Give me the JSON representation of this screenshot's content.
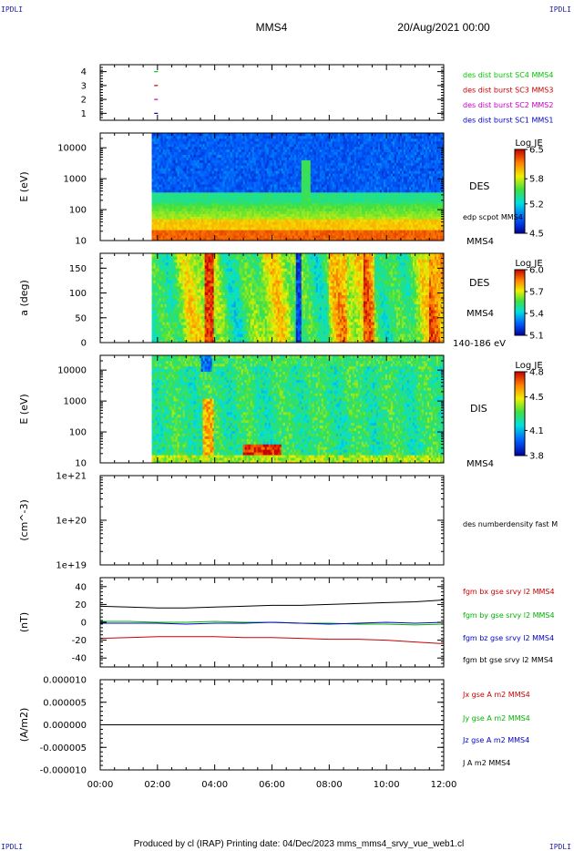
{
  "page": {
    "corner_labels": [
      "IPDLI",
      "IPDLI",
      "IPDLI",
      "IPDLI"
    ],
    "title": "MMS4",
    "date": "20/Aug/2021 00:00",
    "footer": "Produced by cl (IRAP)   Printing date: 04/Dec/2023   mms_mms4_srvy_vue_web1.cl"
  },
  "time_axis": {
    "ticks": [
      "00:00",
      "02:00",
      "04:00",
      "06:00",
      "08:00",
      "10:00",
      "12:00"
    ],
    "range_hours": [
      0,
      12
    ]
  },
  "chart_data": [
    {
      "type": "scatter",
      "id": "burst",
      "ylabel": "",
      "ylim": [
        0.5,
        4.5
      ],
      "yticks": [
        "1",
        "2",
        "3",
        "4"
      ],
      "series": [
        {
          "name": "des dist burst SC1 MMS1",
          "color": "#0000c8",
          "y": 1,
          "x": [
            1.95
          ]
        },
        {
          "name": "des dist burst SC2 MMS2",
          "color": "#c800c8",
          "y": 2,
          "x": [
            1.95
          ]
        },
        {
          "name": "des dist burst SC3 MMS3",
          "color": "#c80000",
          "y": 3,
          "x": [
            1.95
          ]
        },
        {
          "name": "des dist burst SC4 MMS4",
          "color": "#00c800",
          "y": 4,
          "x": [
            1.95
          ]
        }
      ]
    },
    {
      "type": "heatmap",
      "id": "des_energy",
      "ylabel": "E (eV)",
      "scale": "log",
      "ylim": [
        10,
        30000
      ],
      "yticks": [
        "10",
        "100",
        "1000",
        "10000"
      ],
      "data_start_hour": 1.8,
      "right_labels": [
        "DES",
        "edp scpot MMS4",
        "MMS4"
      ],
      "colorbar": {
        "title": "Log JE",
        "ticks": [
          "6.5",
          "5.8",
          "5.2",
          "4.5"
        ],
        "range": [
          4.5,
          6.5
        ]
      }
    },
    {
      "type": "heatmap",
      "id": "des_pitch",
      "ylabel": "a (deg)",
      "ylim": [
        0,
        180
      ],
      "yticks": [
        "0",
        "50",
        "100",
        "150"
      ],
      "data_start_hour": 1.8,
      "right_labels": [
        "DES",
        "MMS4",
        "140-186 eV"
      ],
      "colorbar": {
        "title": "Log JE",
        "ticks": [
          "6.0",
          "5.7",
          "5.4",
          "5.1"
        ],
        "range": [
          5.1,
          6.0
        ]
      }
    },
    {
      "type": "heatmap",
      "id": "dis_energy",
      "ylabel": "E (eV)",
      "scale": "log",
      "ylim": [
        10,
        30000
      ],
      "yticks": [
        "10",
        "100",
        "1000",
        "10000"
      ],
      "data_start_hour": 1.8,
      "right_labels": [
        "DIS",
        "MMS4"
      ],
      "colorbar": {
        "title": "Log JE",
        "ticks": [
          "4.8",
          "4.5",
          "4.1",
          "3.8"
        ],
        "range": [
          3.8,
          4.8
        ]
      }
    },
    {
      "type": "line",
      "id": "density",
      "ylabel": "(cm^-3)",
      "scale": "log",
      "ylim": [
        1e+19,
        1e+21
      ],
      "yticks": [
        "1e+19",
        "1e+20",
        "1e+21"
      ],
      "series": [
        {
          "name": "des numberdensity fast M",
          "color": "#000000",
          "x": [],
          "y": []
        }
      ]
    },
    {
      "type": "line",
      "id": "fgm",
      "ylabel": "(nT)",
      "ylim": [
        -50,
        50
      ],
      "yticks": [
        "-40",
        "-20",
        "0",
        "20",
        "40"
      ],
      "series": [
        {
          "name": "fgm bx gse srvy l2 MMS4",
          "color": "#c80000",
          "x": [
            0,
            1,
            2,
            3,
            4,
            5,
            6,
            7,
            8,
            9,
            10,
            11,
            12
          ],
          "y": [
            -18,
            -17,
            -16,
            -16,
            -16,
            -17,
            -17,
            -18,
            -19,
            -19,
            -20,
            -22,
            -24
          ]
        },
        {
          "name": "fgm by gse srvy l2 MMS4",
          "color": "#00b400",
          "x": [
            0,
            1,
            2,
            3,
            4,
            5,
            6,
            7,
            8,
            9,
            10,
            11,
            12
          ],
          "y": [
            1,
            1,
            0,
            0,
            1,
            0,
            0,
            -1,
            -1,
            -2,
            -2,
            -3,
            -2
          ]
        },
        {
          "name": "fgm bz gse srvy l2 MMS4",
          "color": "#0000c8",
          "x": [
            0,
            1,
            2,
            3,
            4,
            5,
            6,
            7,
            8,
            9,
            10,
            11,
            12
          ],
          "y": [
            -1,
            -1,
            -1,
            -2,
            -1,
            -1,
            0,
            -1,
            -2,
            -1,
            0,
            -1,
            0
          ]
        },
        {
          "name": "fgm bt gse srvy l2 MMS4",
          "color": "#000000",
          "x": [
            0,
            1,
            2,
            3,
            4,
            5,
            6,
            7,
            8,
            9,
            10,
            11,
            12
          ],
          "y": [
            18,
            17,
            16,
            16,
            17,
            18,
            19,
            19,
            20,
            21,
            22,
            23,
            25
          ]
        }
      ]
    },
    {
      "type": "line",
      "id": "current",
      "ylabel": "(A/m2)",
      "ylim": [
        -1e-05,
        1e-05
      ],
      "yticks": [
        "-0.000010",
        "-0.000005",
        "0.000000",
        "0.000005",
        "0.000010"
      ],
      "series": [
        {
          "name": "Jx gse A m2 MMS4",
          "color": "#c80000",
          "x": [
            0,
            12
          ],
          "y": [
            0,
            0
          ]
        },
        {
          "name": "Jy gse A m2 MMS4",
          "color": "#00b400",
          "x": [
            0,
            12
          ],
          "y": [
            0,
            0
          ]
        },
        {
          "name": "Jz gse A m2 MMS4",
          "color": "#0000c8",
          "x": [
            0,
            12
          ],
          "y": [
            0,
            0
          ]
        },
        {
          "name": "J A m2 MMS4",
          "color": "#000000",
          "x": [
            0,
            12
          ],
          "y": [
            0,
            0
          ]
        }
      ]
    }
  ]
}
